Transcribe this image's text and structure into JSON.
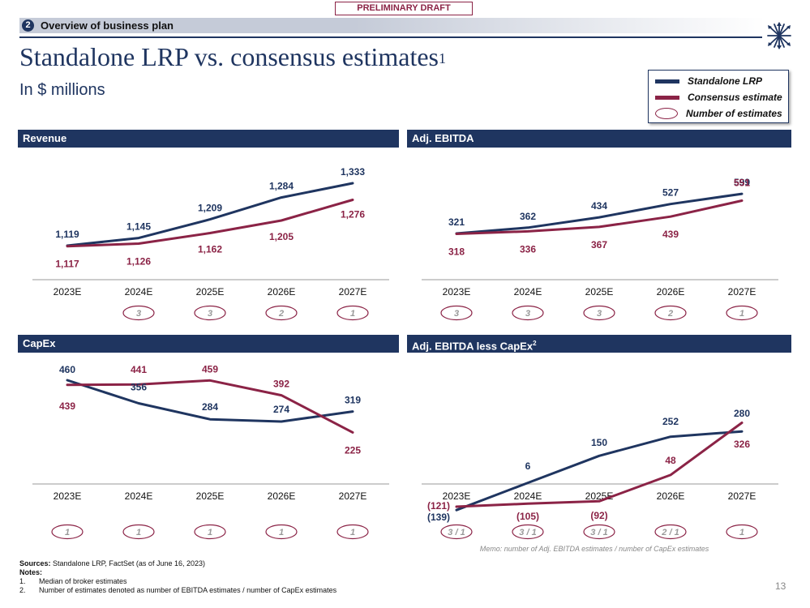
{
  "draft_stamp": "PRELIMINARY DRAFT",
  "section": {
    "number": "2",
    "label": "Overview of business plan"
  },
  "logo_icon": "arrows-burst-logo",
  "title": "Standalone LRP vs. consensus estimates",
  "title_footnote": "1",
  "subtitle": "In $ millions",
  "legend": {
    "items": [
      {
        "label": "Standalone LRP",
        "type": "line",
        "color": "#1f3560"
      },
      {
        "label": "Consensus estimate",
        "type": "line",
        "color": "#8b2346"
      },
      {
        "label": "Number of estimates",
        "type": "oval",
        "color": "#8b2346"
      }
    ]
  },
  "colors": {
    "lrp": "#1f3560",
    "consensus": "#8b2346",
    "header": "#1f3560",
    "axis": "#bbbbbb"
  },
  "memo": "Memo: number of Adj. EBITDA estimates / number of CapEx estimates",
  "footer": {
    "sources_label": "Sources:",
    "sources_text": "Standalone LRP, FactSet (as of June 16, 2023)",
    "notes_label": "Notes:",
    "notes": [
      {
        "num": "1.",
        "text": "Median of broker estimates"
      },
      {
        "num": "2.",
        "text": "Number of estimates denoted as number of EBITDA estimates / number of CapEx estimates"
      }
    ]
  },
  "page_number": "13",
  "chart_data": [
    {
      "type": "line",
      "title": "Revenue",
      "title_footnote": "",
      "categories": [
        "2023E",
        "2024E",
        "2025E",
        "2026E",
        "2027E"
      ],
      "series": [
        {
          "name": "Standalone LRP",
          "values": [
            1119,
            1145,
            1209,
            1284,
            1333
          ],
          "labels": [
            "1,119",
            "1,145",
            "1,209",
            "1,284",
            "1,333"
          ]
        },
        {
          "name": "Consensus estimate",
          "values": [
            1117,
            1126,
            1162,
            1205,
            1276
          ],
          "labels": [
            "1,117",
            "1,126",
            "1,162",
            "1,205",
            "1,276"
          ]
        }
      ],
      "num_estimates": [
        "",
        "3",
        "3",
        "2",
        "1"
      ],
      "xlabel": "",
      "ylabel": ""
    },
    {
      "type": "line",
      "title": "Adj. EBITDA",
      "title_footnote": "",
      "categories": [
        "2023E",
        "2024E",
        "2025E",
        "2026E",
        "2027E"
      ],
      "series": [
        {
          "name": "Standalone LRP",
          "values": [
            321,
            362,
            434,
            527,
            599
          ],
          "labels": [
            "321",
            "362",
            "434",
            "527",
            "599"
          ]
        },
        {
          "name": "Consensus estimate",
          "values": [
            318,
            336,
            367,
            439,
            551
          ],
          "labels": [
            "318",
            "336",
            "367",
            "439",
            "551"
          ]
        }
      ],
      "num_estimates": [
        "3",
        "3",
        "3",
        "2",
        "1"
      ],
      "xlabel": "",
      "ylabel": ""
    },
    {
      "type": "line",
      "title": "CapEx",
      "title_footnote": "",
      "categories": [
        "2023E",
        "2024E",
        "2025E",
        "2026E",
        "2027E"
      ],
      "series": [
        {
          "name": "Standalone LRP",
          "values": [
            460,
            356,
            284,
            274,
            319
          ],
          "labels": [
            "460",
            "356",
            "284",
            "274",
            "319"
          ]
        },
        {
          "name": "Consensus estimate",
          "values": [
            439,
            441,
            459,
            392,
            225
          ],
          "labels": [
            "439",
            "441",
            "459",
            "392",
            "225"
          ]
        }
      ],
      "num_estimates": [
        "1",
        "1",
        "1",
        "1",
        "1"
      ],
      "xlabel": "",
      "ylabel": ""
    },
    {
      "type": "line",
      "title": "Adj. EBITDA less CapEx",
      "title_footnote": "2",
      "categories": [
        "2023E",
        "2024E",
        "2025E",
        "2026E",
        "2027E"
      ],
      "series": [
        {
          "name": "Standalone LRP",
          "values": [
            -139,
            6,
            150,
            252,
            280
          ],
          "labels": [
            "(139)",
            "6",
            "150",
            "252",
            "280"
          ]
        },
        {
          "name": "Consensus estimate",
          "values": [
            -121,
            -105,
            -92,
            48,
            326
          ],
          "labels": [
            "(121)",
            "(105)",
            "(92)",
            "48",
            "326"
          ]
        }
      ],
      "num_estimates": [
        "3 / 1",
        "3 / 1",
        "3 / 1",
        "2 / 1",
        "1"
      ],
      "xlabel": "",
      "ylabel": ""
    }
  ]
}
